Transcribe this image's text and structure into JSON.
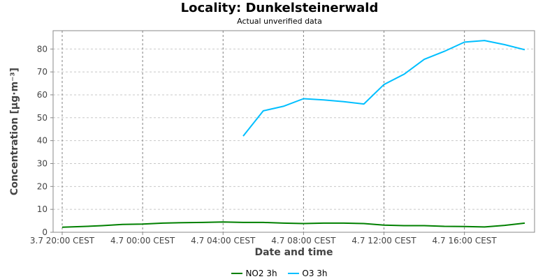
{
  "chart_data": {
    "type": "line",
    "title": "Locality: Dunkelsteinerwald",
    "subtitle": "Actual unverified data",
    "xlabel": "Date and time",
    "ylabel": "Concentration [µg·m⁻³]",
    "ylim": [
      0,
      88
    ],
    "y_ticks": [
      0,
      10,
      20,
      30,
      40,
      50,
      60,
      70,
      80
    ],
    "x_ticks": [
      "3.7 20:00 CEST",
      "4.7 00:00 CEST",
      "4.7 04:00 CEST",
      "4.7 08:00 CEST",
      "4.7 12:00 CEST",
      "4.7 16:00 CEST"
    ],
    "x_hours": [
      "3.7 20:00",
      "3.7 21:00",
      "3.7 22:00",
      "3.7 23:00",
      "4.7 00:00",
      "4.7 01:00",
      "4.7 02:00",
      "4.7 03:00",
      "4.7 04:00",
      "4.7 05:00",
      "4.7 06:00",
      "4.7 07:00",
      "4.7 08:00",
      "4.7 09:00",
      "4.7 10:00",
      "4.7 11:00",
      "4.7 12:00",
      "4.7 13:00",
      "4.7 14:00",
      "4.7 15:00",
      "4.7 16:00",
      "4.7 17:00",
      "4.7 18:00",
      "4.7 19:00"
    ],
    "grid": true,
    "legend_position": "bottom",
    "series": [
      {
        "name": "NO2 3h",
        "color": "#008000",
        "values": [
          2.2,
          2.5,
          2.9,
          3.4,
          3.6,
          4.0,
          4.2,
          4.3,
          4.5,
          4.3,
          4.3,
          4.0,
          3.8,
          4.0,
          4.0,
          3.8,
          3.1,
          2.9,
          2.9,
          2.6,
          2.5,
          2.3,
          3.0,
          4.0
        ]
      },
      {
        "name": "O3 3h",
        "color": "#00bfff",
        "values": [
          null,
          null,
          null,
          null,
          null,
          null,
          null,
          null,
          null,
          42,
          53,
          55,
          58.3,
          57.8,
          57,
          56,
          64.5,
          69,
          75.5,
          79,
          83,
          83.7,
          81.9,
          79.7
        ]
      }
    ]
  }
}
